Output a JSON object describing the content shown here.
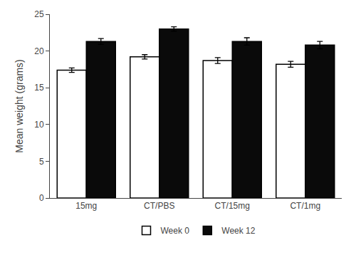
{
  "chart_data": {
    "type": "bar",
    "ylabel": "Mean weight (grams)",
    "categories": [
      "15mg",
      "CT/PBS",
      "CT/15mg",
      "CT/1mg"
    ],
    "series": [
      {
        "name": "Week 0",
        "color": "#ffffff",
        "values": [
          17.4,
          19.2,
          18.7,
          18.2
        ],
        "errors": [
          0.3,
          0.3,
          0.4,
          0.4
        ]
      },
      {
        "name": "Week 12",
        "color": "#0a0a0a",
        "values": [
          21.3,
          23.0,
          21.3,
          20.8
        ],
        "errors": [
          0.4,
          0.3,
          0.5,
          0.5
        ]
      }
    ],
    "ylim": [
      0,
      25
    ],
    "yticks": [
      0,
      5,
      10,
      15,
      20,
      25
    ],
    "grid": false,
    "legend": "bottom"
  }
}
